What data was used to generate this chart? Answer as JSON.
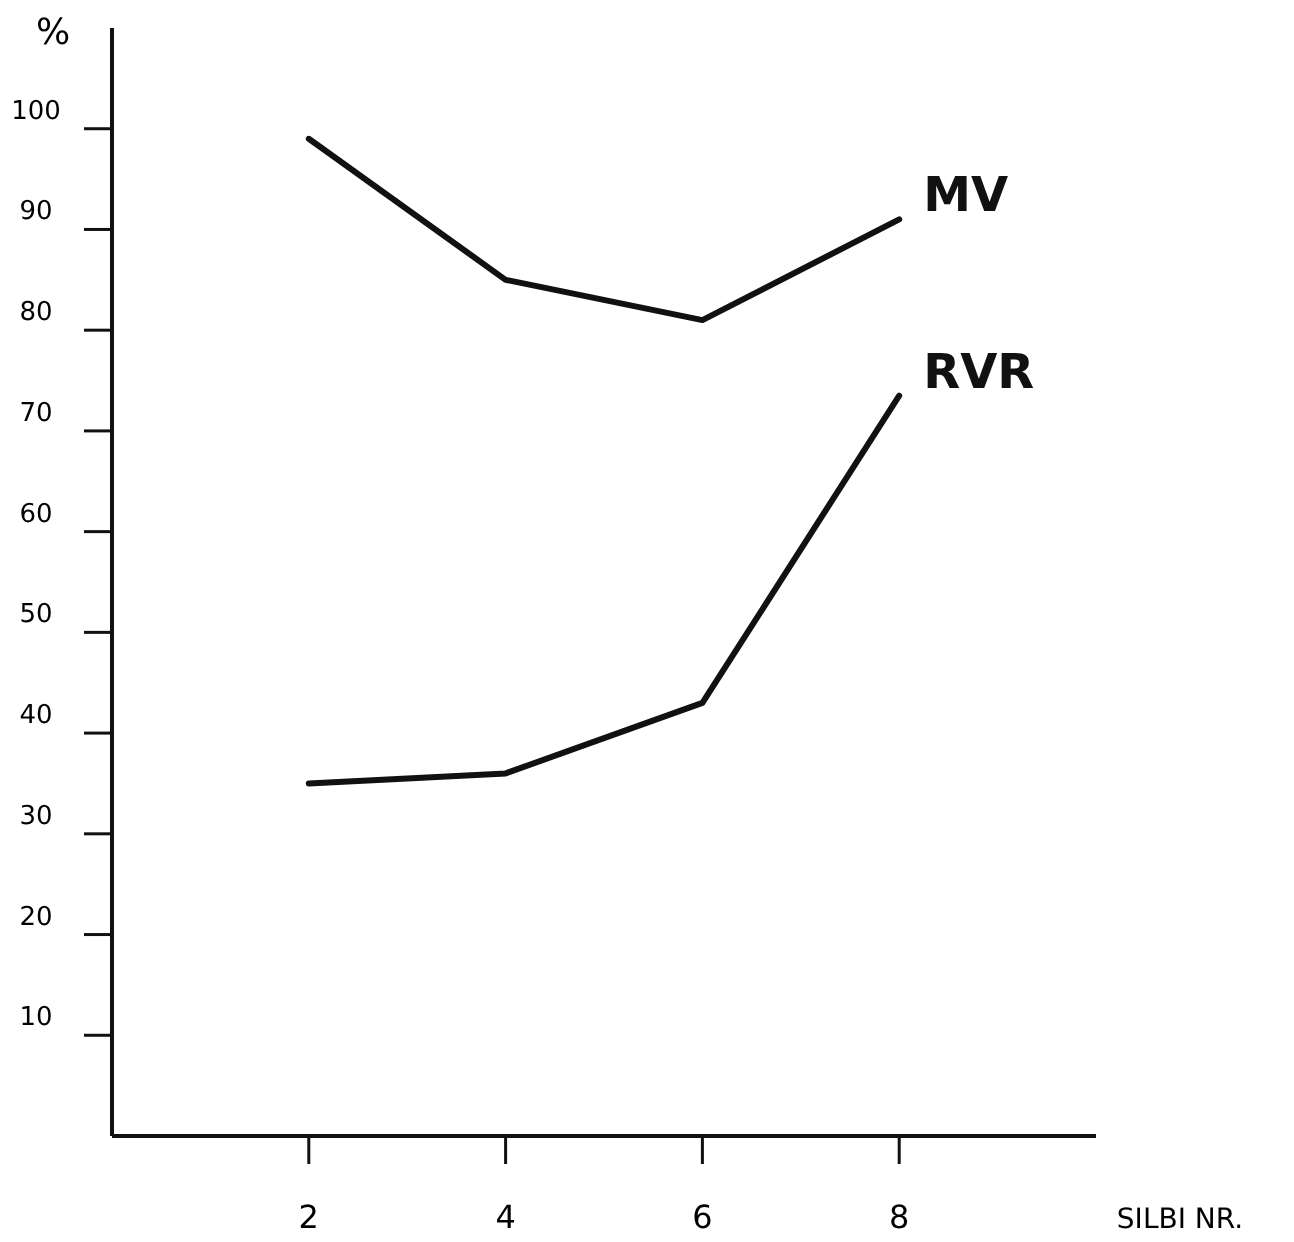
{
  "chart_data": {
    "type": "line",
    "xlabel": "SILBI NR.",
    "ylabel": "%",
    "x": [
      2,
      4,
      6,
      8
    ],
    "series": [
      {
        "name": "MV",
        "color": "#111111",
        "values": [
          99,
          85,
          81,
          91
        ]
      },
      {
        "name": "RVR",
        "color": "#111111",
        "values": [
          35,
          36,
          43,
          73.5
        ]
      }
    ],
    "xlim": [
      0,
      10
    ],
    "xticks": [
      2,
      4,
      6,
      8
    ],
    "ylim": [
      0,
      110
    ],
    "yticks": [
      10,
      20,
      30,
      40,
      50,
      60,
      70,
      80,
      90,
      100
    ],
    "marker": "none",
    "line_style": "solid"
  }
}
